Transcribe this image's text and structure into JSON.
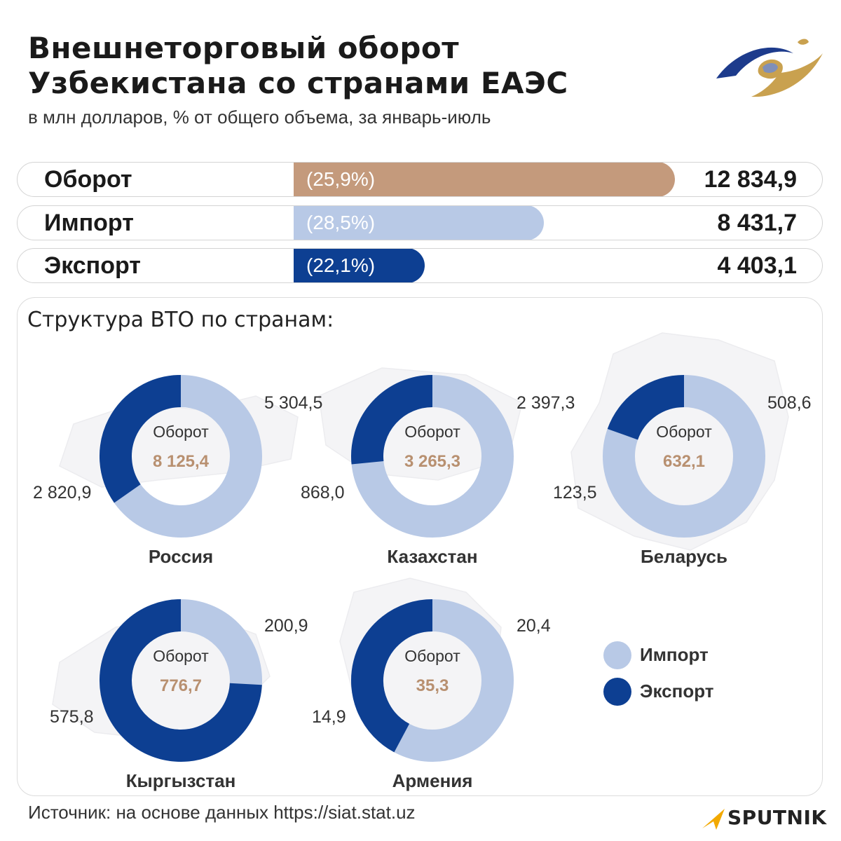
{
  "title_line1": "Внешнеторговый оборот",
  "title_line2": "Узбекистана со странами ЕАЭС",
  "subtitle": "в млн долларов, % от общего объема, за январь-июль",
  "colors": {
    "turnover": "#c49a7c",
    "import": "#b8c9e6",
    "export": "#0d3f92",
    "center_value": "#b89070"
  },
  "summary": [
    {
      "label": "Оборот",
      "pct_text": "(25,9%)",
      "value_text": "12 834,9",
      "value": 12834.9,
      "color": "#c49a7c"
    },
    {
      "label": "Импорт",
      "pct_text": "(28,5%)",
      "value_text": "8 431,7",
      "value": 8431.7,
      "color": "#b8c9e6"
    },
    {
      "label": "Экспорт",
      "pct_text": "(22,1%)",
      "value_text": "4 403,1",
      "value": 4403.1,
      "color": "#0d3f92"
    }
  ],
  "structure_title": "Структура ВТО по странам:",
  "chart_data": {
    "type": "donut",
    "series_names": [
      "Импорт",
      "Экспорт"
    ],
    "countries": [
      {
        "name": "Россия",
        "center_label": "Оборот",
        "turnover_text": "8 125,4",
        "import_text": "5 304,5",
        "export_text": "2 820,9",
        "import": 5304.5,
        "export": 2820.9
      },
      {
        "name": "Казахстан",
        "center_label": "Оборот",
        "turnover_text": "3 265,3",
        "import_text": "2 397,3",
        "export_text": "868,0",
        "import": 2397.3,
        "export": 868.0
      },
      {
        "name": "Беларусь",
        "center_label": "Оборот",
        "turnover_text": "632,1",
        "import_text": "508,6",
        "export_text": "123,5",
        "import": 508.6,
        "export": 123.5
      },
      {
        "name": "Кыргызстан",
        "center_label": "Оборот",
        "turnover_text": "776,7",
        "import_text": "200,9",
        "export_text": "575,8",
        "import": 200.9,
        "export": 575.8
      },
      {
        "name": "Армения",
        "center_label": "Оборот",
        "turnover_text": "35,3",
        "import_text": "20,4",
        "export_text": "14,9",
        "import": 20.4,
        "export": 14.9
      }
    ]
  },
  "legend": {
    "import_label": "Импорт",
    "export_label": "Экспорт"
  },
  "source": "Источник: на основе данных https://siat.stat.uz",
  "brand": "SPUTNIK"
}
